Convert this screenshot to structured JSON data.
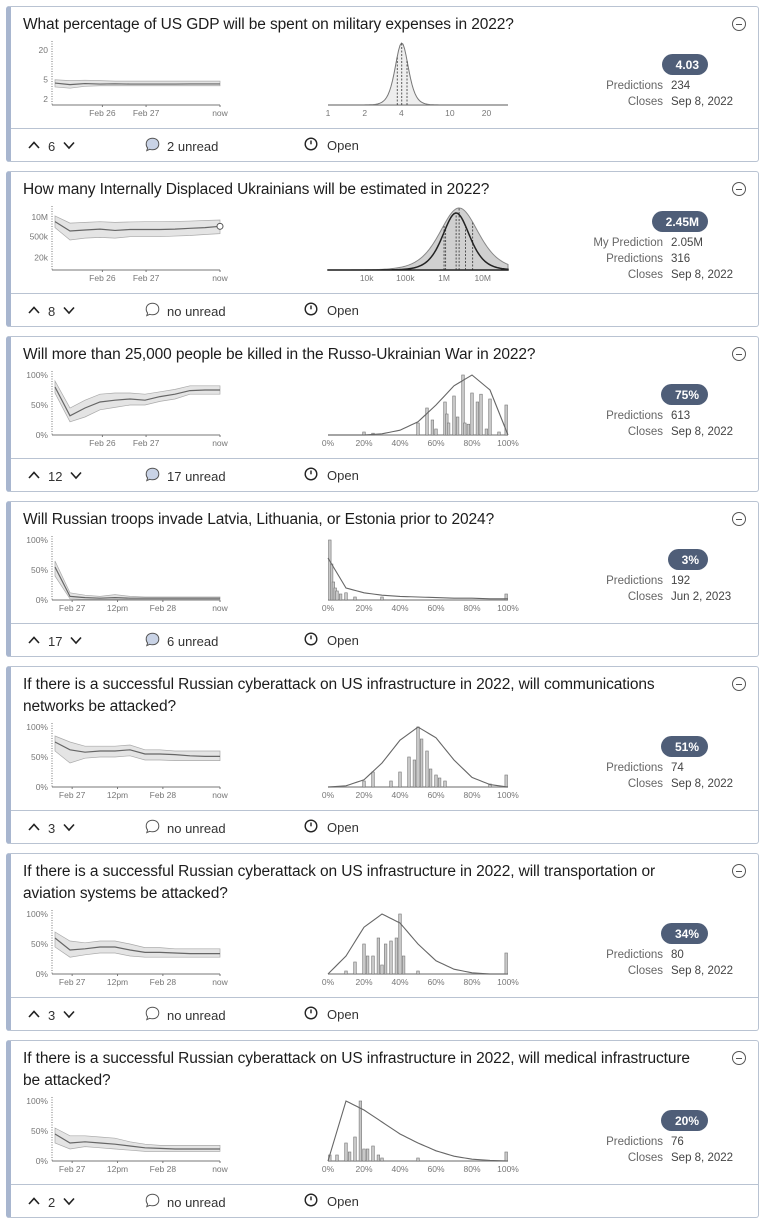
{
  "colors": {
    "badge": "#4f5e78",
    "card_accent": "#a8b6cf",
    "border": "#b9c3d2",
    "comment_unread_fill": "#c9d3e6"
  },
  "labels": {
    "predictions": "Predictions",
    "closes": "Closes",
    "my_prediction": "My Prediction"
  },
  "questions": [
    {
      "title": "What percentage of US GDP will be spent on military expenses in 2022?",
      "community": "4.03",
      "predictions": "234",
      "closes": "Sep 8, 2022",
      "votes": "6",
      "comments": "2 unread",
      "has_unread": true,
      "status": "Open",
      "chart_data": [
        {
          "type": "line",
          "scale": "log",
          "yticks": [
            "20",
            "5",
            "2"
          ],
          "ytick_values": [
            20,
            5,
            2
          ],
          "ylim": [
            1.5,
            25
          ],
          "xticks": [
            "Feb 26",
            "Feb 27",
            "now"
          ],
          "median": [
            4.2,
            3.9,
            4.1,
            4.0,
            4.05,
            4.0,
            4.0,
            4.0,
            4.0,
            4.03,
            4.03,
            4.03
          ],
          "low": [
            3.5,
            3.3,
            3.6,
            3.7,
            3.7,
            3.7,
            3.7,
            3.7,
            3.7,
            3.7,
            3.7,
            3.7
          ],
          "high": [
            4.9,
            4.7,
            4.8,
            4.7,
            4.6,
            4.6,
            4.6,
            4.6,
            4.6,
            4.6,
            4.6,
            4.6
          ]
        },
        {
          "type": "area",
          "scale": "log",
          "xticks": [
            "1",
            "2",
            "4",
            "10",
            "20"
          ],
          "xtick_values": [
            1,
            2,
            4,
            10,
            20
          ],
          "xlim": [
            1,
            30
          ],
          "community": {
            "median": 4.03,
            "lower_quartile": 3.7,
            "upper_quartile": 4.45
          }
        }
      ]
    },
    {
      "title": "How many Internally Displaced Ukrainians will be estimated in 2022?",
      "community": "2.45M",
      "my_prediction": "2.05M",
      "predictions": "316",
      "closes": "Sep 8, 2022",
      "votes": "8",
      "comments": "no unread",
      "has_unread": false,
      "status": "Open",
      "chart_data": [
        {
          "type": "line",
          "scale": "log",
          "yticks": [
            "10M",
            "500k",
            "20k"
          ],
          "ytick_values": [
            10000000,
            500000,
            20000
          ],
          "ylim": [
            3000,
            30000000
          ],
          "xticks": [
            "Feb 26",
            "Feb 27",
            "now"
          ],
          "median": [
            5000000,
            1200000,
            1400000,
            1600000,
            1300000,
            1500000,
            1500000,
            1500000,
            1600000,
            1800000,
            2000000,
            2450000
          ],
          "low": [
            2000000,
            300000,
            400000,
            450000,
            400000,
            500000,
            500000,
            500000,
            550000,
            600000,
            700000,
            800000
          ],
          "high": [
            12000000,
            4000000,
            4500000,
            5000000,
            4500000,
            4800000,
            5000000,
            5000000,
            5200000,
            5500000,
            6000000,
            6500000
          ]
        },
        {
          "type": "area",
          "scale": "log",
          "xticks": [
            "10k",
            "100k",
            "1M",
            "10M"
          ],
          "xtick_values": [
            10000,
            100000,
            1000000,
            10000000
          ],
          "xlim": [
            1000,
            45000000
          ],
          "community": {
            "median": 2450000,
            "lower_quartile": 1000000,
            "upper_quartile": 5500000
          },
          "my_prediction": {
            "median": 2050000,
            "lower_quartile": 1100000,
            "upper_quartile": 3600000
          }
        }
      ]
    },
    {
      "title": "Will more than 25,000 people be killed in the Russo-Ukrainian War in 2022?",
      "community": "75%",
      "predictions": "613",
      "closes": "Sep 8, 2022",
      "votes": "12",
      "comments": "17 unread",
      "has_unread": true,
      "status": "Open",
      "chart_data": [
        {
          "type": "line",
          "scale": "linear",
          "yticks": [
            "100%",
            "50%",
            "0%"
          ],
          "ytick_values": [
            100,
            50,
            0
          ],
          "ylim": [
            0,
            100
          ],
          "xticks": [
            "Feb 26",
            "Feb 27",
            "now"
          ],
          "median": [
            80,
            32,
            45,
            55,
            58,
            60,
            58,
            64,
            68,
            74,
            75,
            75
          ],
          "low": [
            70,
            22,
            30,
            42,
            46,
            50,
            50,
            56,
            60,
            68,
            68,
            68
          ],
          "high": [
            90,
            45,
            58,
            68,
            70,
            70,
            68,
            72,
            76,
            82,
            82,
            82
          ]
        },
        {
          "type": "bar",
          "xticks": [
            "0%",
            "20%",
            "40%",
            "60%",
            "80%",
            "100%"
          ],
          "curve": [
            0,
            0,
            0,
            0.02,
            0.08,
            0.22,
            0.5,
            0.82,
            1.0,
            0.75,
            0
          ],
          "bars": [
            [
              20,
              0.05
            ],
            [
              25,
              0.03
            ],
            [
              50,
              0.2
            ],
            [
              55,
              0.45
            ],
            [
              58,
              0.25
            ],
            [
              60,
              0.1
            ],
            [
              65,
              0.55
            ],
            [
              66,
              0.35
            ],
            [
              67,
              0.2
            ],
            [
              70,
              0.65
            ],
            [
              72,
              0.3
            ],
            [
              75,
              1.0
            ],
            [
              76,
              0.2
            ],
            [
              78,
              0.18
            ],
            [
              80,
              0.7
            ],
            [
              83,
              0.55
            ],
            [
              85,
              0.68
            ],
            [
              88,
              0.1
            ],
            [
              90,
              0.6
            ],
            [
              95,
              0.05
            ],
            [
              99,
              0.5
            ]
          ]
        }
      ]
    },
    {
      "title": "Will Russian troops invade Latvia, Lithuania, or Estonia prior to 2024?",
      "community": "3%",
      "predictions": "192",
      "closes": "Jun 2, 2023",
      "votes": "17",
      "comments": "6 unread",
      "has_unread": true,
      "status": "Open",
      "chart_data": [
        {
          "type": "line",
          "scale": "linear",
          "yticks": [
            "100%",
            "50%",
            "0%"
          ],
          "ytick_values": [
            100,
            50,
            0
          ],
          "ylim": [
            0,
            100
          ],
          "xticks": [
            "Feb 27",
            "12pm",
            "Feb 28",
            "now"
          ],
          "median": [
            55,
            6,
            4,
            3,
            4,
            3,
            3,
            3,
            3,
            3,
            3,
            3
          ],
          "low": [
            40,
            2,
            1,
            1,
            1,
            1,
            1,
            1,
            1,
            1,
            1,
            1
          ],
          "high": [
            65,
            12,
            8,
            6,
            9,
            6,
            5,
            5,
            5,
            5,
            5,
            5
          ]
        },
        {
          "type": "bar",
          "xticks": [
            "0%",
            "20%",
            "40%",
            "60%",
            "80%",
            "100%"
          ],
          "curve": [
            0.7,
            0.2,
            0.12,
            0.08,
            0.06,
            0.05,
            0.04,
            0.03,
            0.03,
            0.02,
            0.02
          ],
          "bars": [
            [
              1,
              1.0
            ],
            [
              2,
              0.6
            ],
            [
              3,
              0.3
            ],
            [
              4,
              0.2
            ],
            [
              5,
              0.15
            ],
            [
              7,
              0.1
            ],
            [
              10,
              0.12
            ],
            [
              15,
              0.05
            ],
            [
              30,
              0.05
            ],
            [
              99,
              0.1
            ]
          ]
        }
      ]
    },
    {
      "title": "If there is a successful Russian cyberattack on US infrastructure in 2022, will communications networks be attacked?",
      "community": "51%",
      "predictions": "74",
      "closes": "Sep 8, 2022",
      "votes": "3",
      "comments": "no unread",
      "has_unread": false,
      "status": "Open",
      "chart_data": [
        {
          "type": "line",
          "scale": "linear",
          "yticks": [
            "100%",
            "50%",
            "0%"
          ],
          "ytick_values": [
            100,
            50,
            0
          ],
          "ylim": [
            0,
            100
          ],
          "xticks": [
            "Feb 27",
            "12pm",
            "Feb 28",
            "now"
          ],
          "median": [
            75,
            62,
            58,
            60,
            60,
            62,
            55,
            55,
            54,
            52,
            51,
            51
          ],
          "low": [
            60,
            40,
            48,
            50,
            50,
            52,
            45,
            45,
            44,
            44,
            44,
            44
          ],
          "high": [
            85,
            75,
            68,
            68,
            68,
            70,
            62,
            62,
            60,
            60,
            60,
            60
          ]
        },
        {
          "type": "bar",
          "xticks": [
            "0%",
            "20%",
            "40%",
            "60%",
            "80%",
            "100%"
          ],
          "curve": [
            0,
            0.02,
            0.12,
            0.4,
            0.78,
            1.0,
            0.82,
            0.45,
            0.16,
            0.04,
            0
          ],
          "bars": [
            [
              20,
              0.1
            ],
            [
              25,
              0.25
            ],
            [
              35,
              0.1
            ],
            [
              40,
              0.25
            ],
            [
              45,
              0.5
            ],
            [
              48,
              0.45
            ],
            [
              50,
              1.0
            ],
            [
              52,
              0.8
            ],
            [
              55,
              0.6
            ],
            [
              57,
              0.3
            ],
            [
              60,
              0.2
            ],
            [
              62,
              0.15
            ],
            [
              65,
              0.1
            ],
            [
              90,
              0.05
            ],
            [
              99,
              0.2
            ]
          ]
        }
      ]
    },
    {
      "title": "If there is a successful Russian cyberattack on US infrastructure in 2022, will transportation or aviation systems be attacked?",
      "community": "34%",
      "predictions": "80",
      "closes": "Sep 8, 2022",
      "votes": "3",
      "comments": "no unread",
      "has_unread": false,
      "status": "Open",
      "chart_data": [
        {
          "type": "line",
          "scale": "linear",
          "yticks": [
            "100%",
            "50%",
            "0%"
          ],
          "ytick_values": [
            100,
            50,
            0
          ],
          "ylim": [
            0,
            100
          ],
          "xticks": [
            "Feb 27",
            "12pm",
            "Feb 28",
            "now"
          ],
          "median": [
            60,
            40,
            42,
            45,
            45,
            40,
            36,
            36,
            35,
            34,
            34,
            34
          ],
          "low": [
            45,
            28,
            32,
            35,
            35,
            30,
            28,
            28,
            28,
            28,
            28,
            28
          ],
          "high": [
            70,
            55,
            52,
            55,
            55,
            50,
            44,
            44,
            42,
            42,
            42,
            42
          ]
        },
        {
          "type": "bar",
          "xticks": [
            "0%",
            "20%",
            "40%",
            "60%",
            "80%",
            "100%"
          ],
          "curve": [
            0,
            0.3,
            0.78,
            1.0,
            0.85,
            0.5,
            0.22,
            0.08,
            0.02,
            0,
            0
          ],
          "bars": [
            [
              10,
              0.05
            ],
            [
              15,
              0.2
            ],
            [
              20,
              0.5
            ],
            [
              22,
              0.3
            ],
            [
              25,
              0.3
            ],
            [
              28,
              0.6
            ],
            [
              30,
              0.15
            ],
            [
              32,
              0.5
            ],
            [
              35,
              0.55
            ],
            [
              38,
              0.6
            ],
            [
              40,
              1.0
            ],
            [
              42,
              0.3
            ],
            [
              50,
              0.05
            ],
            [
              99,
              0.35
            ]
          ]
        }
      ]
    },
    {
      "title": "If there is a successful Russian cyberattack on US infrastructure in 2022, will medical infrastructure be attacked?",
      "community": "20%",
      "predictions": "76",
      "closes": "Sep 8, 2022",
      "votes": "2",
      "comments": "no unread",
      "has_unread": false,
      "status": "Open",
      "chart_data": [
        {
          "type": "line",
          "scale": "linear",
          "yticks": [
            "100%",
            "50%",
            "0%"
          ],
          "ytick_values": [
            100,
            50,
            0
          ],
          "ylim": [
            0,
            100
          ],
          "xticks": [
            "Feb 27",
            "12pm",
            "Feb 28",
            "now"
          ],
          "median": [
            45,
            30,
            32,
            30,
            28,
            25,
            22,
            21,
            20,
            20,
            20,
            20
          ],
          "low": [
            30,
            20,
            24,
            22,
            20,
            18,
            16,
            16,
            16,
            16,
            16,
            16
          ],
          "high": [
            55,
            42,
            42,
            40,
            38,
            32,
            28,
            26,
            26,
            26,
            26,
            26
          ]
        },
        {
          "type": "bar",
          "xticks": [
            "0%",
            "20%",
            "40%",
            "60%",
            "80%",
            "100%"
          ],
          "curve": [
            0,
            1.0,
            0.85,
            0.65,
            0.45,
            0.3,
            0.17,
            0.08,
            0.03,
            0.01,
            0
          ],
          "bars": [
            [
              1,
              0.1
            ],
            [
              5,
              0.1
            ],
            [
              10,
              0.3
            ],
            [
              12,
              0.15
            ],
            [
              15,
              0.4
            ],
            [
              18,
              1.0
            ],
            [
              20,
              0.2
            ],
            [
              22,
              0.2
            ],
            [
              25,
              0.25
            ],
            [
              28,
              0.1
            ],
            [
              30,
              0.05
            ],
            [
              50,
              0.05
            ],
            [
              99,
              0.15
            ]
          ]
        }
      ]
    }
  ]
}
